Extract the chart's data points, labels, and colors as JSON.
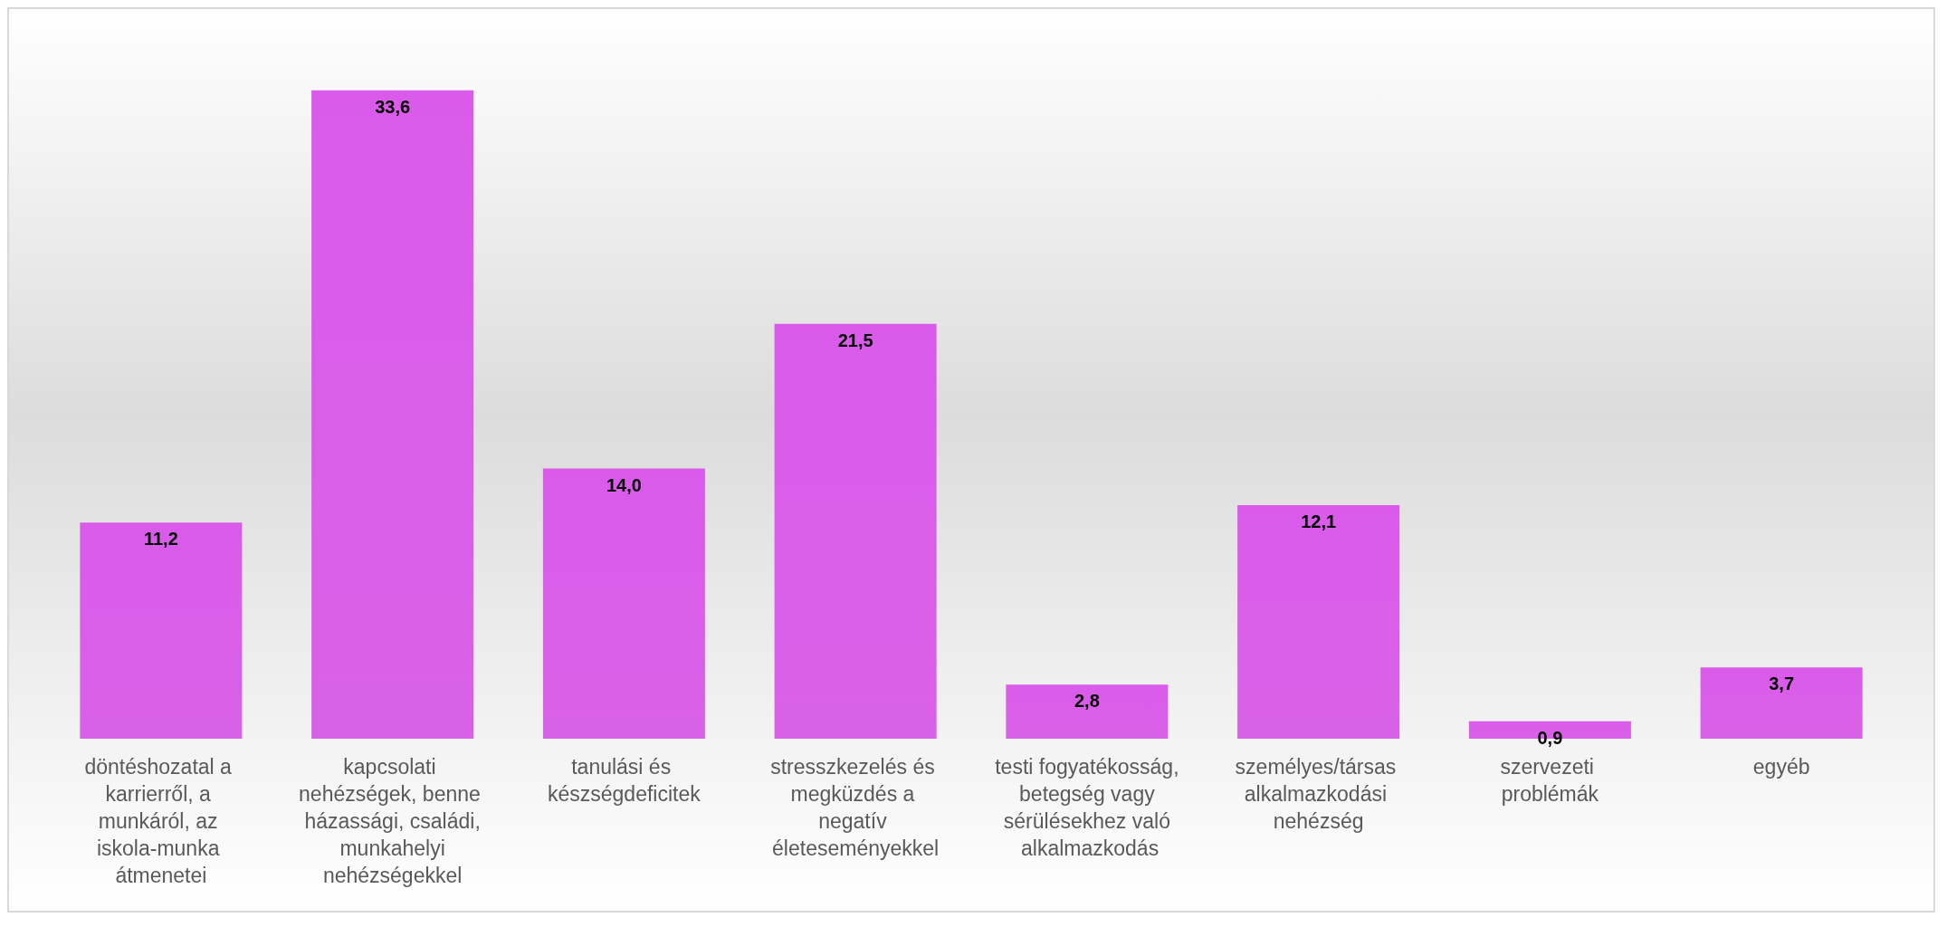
{
  "chart_data": {
    "type": "bar",
    "categories": [
      "döntéshozatal a karrierről, a munkáról, az iskola-munka átmenetei",
      "kapcsolati nehézségek, benne házassági, családi, munkahelyi nehézségekkel",
      "tanulási és készségdeficitek",
      "stresszkezelés és megküzdés a negatív életeseményekkel",
      "testi fogyatékosság, betegség vagy sérülésekhez való alkalmazkodás",
      "személyes/társas alkalmazkodási nehézség",
      "szervezeti problémák",
      "egyéb"
    ],
    "values": [
      11.2,
      33.6,
      14.0,
      21.5,
      2.8,
      12.1,
      0.9,
      3.7
    ],
    "value_labels": [
      "11,2",
      "33,6",
      "14,0",
      "21,5",
      "2,8",
      "12,1",
      "0,9",
      "3,7"
    ],
    "color": "#d65ae6"
  }
}
